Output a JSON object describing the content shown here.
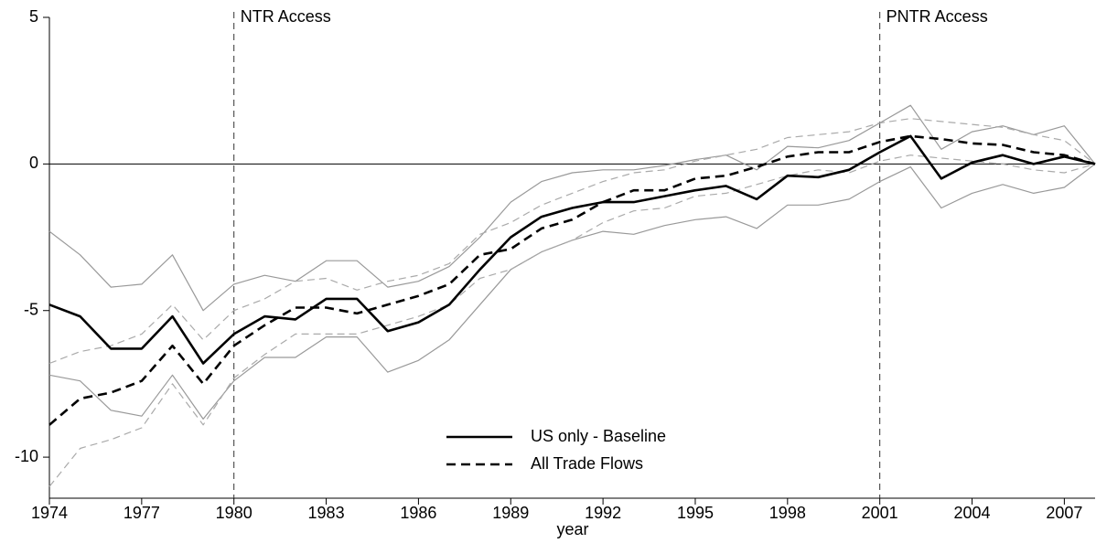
{
  "chart_data": {
    "type": "line",
    "x_label": "year",
    "x": [
      1974,
      1975,
      1976,
      1977,
      1978,
      1979,
      1980,
      1981,
      1982,
      1983,
      1984,
      1985,
      1986,
      1987,
      1988,
      1989,
      1990,
      1991,
      1992,
      1993,
      1994,
      1995,
      1996,
      1997,
      1998,
      1999,
      2000,
      2001,
      2002,
      2003,
      2004,
      2005,
      2006,
      2007,
      2008
    ],
    "series": [
      {
        "color": "#999999",
        "dashed": false,
        "values": [
          -2.3,
          -3.1,
          -4.2,
          -4.1,
          -3.1,
          -5.0,
          -4.1,
          -3.8,
          -4.0,
          -3.3,
          -3.3,
          -4.2,
          -4.0,
          -3.5,
          -2.5,
          -1.3,
          -0.6,
          -0.3,
          -0.2,
          -0.2,
          -0.05,
          0.15,
          0.3,
          -0.2,
          0.6,
          0.55,
          0.8,
          1.4,
          2.0,
          0.5,
          1.1,
          1.3,
          1.0,
          1.3,
          0
        ]
      },
      {
        "color": "#999999",
        "dashed": false,
        "values": [
          -7.2,
          -7.4,
          -8.4,
          -8.6,
          -7.2,
          -8.7,
          -7.4,
          -6.6,
          -6.6,
          -5.9,
          -5.9,
          -7.1,
          -6.7,
          -6.0,
          -4.8,
          -3.6,
          -3.0,
          -2.6,
          -2.3,
          -2.4,
          -2.1,
          -1.9,
          -1.8,
          -2.2,
          -1.4,
          -1.4,
          -1.2,
          -0.6,
          -0.1,
          -1.5,
          -1.0,
          -0.7,
          -1.0,
          -0.8,
          0
        ]
      },
      {
        "color": "#aaaaaa",
        "dashed": true,
        "values": [
          -6.8,
          -6.4,
          -6.2,
          -5.8,
          -4.8,
          -6.0,
          -5.0,
          -4.6,
          -4.0,
          -3.9,
          -4.3,
          -4.0,
          -3.8,
          -3.4,
          -2.4,
          -2.0,
          -1.4,
          -1.0,
          -0.6,
          -0.3,
          -0.2,
          0.1,
          0.3,
          0.5,
          0.9,
          1.0,
          1.1,
          1.4,
          1.55,
          1.45,
          1.35,
          1.25,
          1.0,
          0.8,
          0
        ]
      },
      {
        "color": "#aaaaaa",
        "dashed": true,
        "values": [
          -11.0,
          -9.7,
          -9.4,
          -9.0,
          -7.5,
          -8.9,
          -7.3,
          -6.5,
          -5.8,
          -5.8,
          -5.8,
          -5.5,
          -5.2,
          -4.8,
          -3.9,
          -3.6,
          -3.0,
          -2.6,
          -2.0,
          -1.6,
          -1.5,
          -1.1,
          -1.0,
          -0.7,
          -0.4,
          -0.2,
          -0.3,
          0.1,
          0.3,
          0.2,
          0.1,
          0.0,
          -0.2,
          -0.3,
          0
        ]
      },
      {
        "name": "US only - Baseline",
        "color": "#000000",
        "dashed": false,
        "values": [
          -4.8,
          -5.2,
          -6.3,
          -6.3,
          -5.2,
          -6.8,
          -5.8,
          -5.2,
          -5.3,
          -4.6,
          -4.6,
          -5.7,
          -5.4,
          -4.8,
          -3.6,
          -2.5,
          -1.8,
          -1.5,
          -1.3,
          -1.3,
          -1.1,
          -0.9,
          -0.75,
          -1.2,
          -0.4,
          -0.45,
          -0.2,
          0.4,
          0.95,
          -0.5,
          0.05,
          0.3,
          0.0,
          0.25,
          0
        ]
      },
      {
        "name": "All Trade Flows",
        "color": "#000000",
        "dashed": true,
        "values": [
          -8.9,
          -8.0,
          -7.8,
          -7.4,
          -6.2,
          -7.5,
          -6.2,
          -5.5,
          -4.9,
          -4.9,
          -5.1,
          -4.8,
          -4.5,
          -4.1,
          -3.1,
          -2.9,
          -2.2,
          -1.9,
          -1.3,
          -0.9,
          -0.9,
          -0.5,
          -0.4,
          -0.1,
          0.25,
          0.4,
          0.4,
          0.75,
          0.95,
          0.85,
          0.7,
          0.65,
          0.4,
          0.3,
          0
        ]
      }
    ],
    "annotations": [
      {
        "text": "NTR Access",
        "x": 1980
      },
      {
        "text": "PNTR Access",
        "x": 2001
      }
    ],
    "hline": 0,
    "xlim": [
      1974,
      2008
    ],
    "xticks": [
      1974,
      1977,
      1980,
      1983,
      1986,
      1989,
      1992,
      1995,
      1998,
      2001,
      2004,
      2007
    ],
    "ylim": [
      -11.4,
      5
    ],
    "yticks": [
      -10,
      -5,
      0,
      5
    ],
    "legend": "lower center"
  }
}
